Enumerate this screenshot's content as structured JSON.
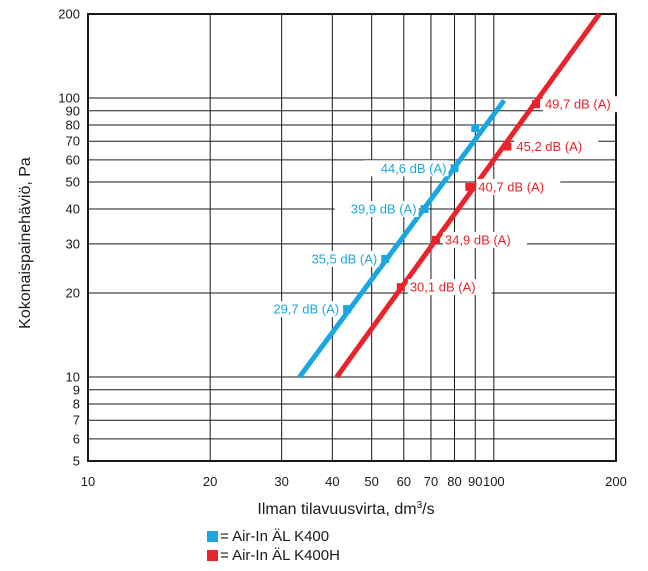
{
  "chart_data": {
    "type": "line",
    "xlabel": "Ilman tilavuusvirta, dm",
    "xlabel_sup": "3",
    "xlabel_tail": "/s",
    "ylabel": "Kokonaispainehäviö, Pa",
    "x_scale": "log",
    "y_scale": "log",
    "xlim": [
      10,
      200
    ],
    "ylim": [
      5,
      200
    ],
    "grid": true,
    "x_ticks": [
      10,
      20,
      30,
      40,
      50,
      60,
      70,
      80,
      90,
      100,
      200
    ],
    "x_tick_labels": [
      "10",
      "20",
      "30",
      "40",
      "50",
      "60",
      "70",
      "80",
      "90",
      "100",
      "200"
    ],
    "y_ticks": [
      5,
      6,
      7,
      8,
      9,
      10,
      20,
      30,
      40,
      50,
      60,
      70,
      80,
      90,
      100,
      200
    ],
    "y_tick_labels": [
      "5",
      "6",
      "7",
      "8",
      "9",
      "10",
      "20",
      "30",
      "40",
      "50",
      "60",
      "70",
      "80",
      "90",
      "100",
      "200"
    ],
    "legend_position": "bottom",
    "series": [
      {
        "name": "= Air-In ÄL K400",
        "color": "#1aa7e0",
        "x": [
          33.2,
          106
        ],
        "y": [
          10,
          98
        ],
        "markers": [
          {
            "x": 43.5,
            "y": 17.5,
            "label": "29,7 dB (A)"
          },
          {
            "x": 54,
            "y": 26.5,
            "label": "35,5 dB (A)"
          },
          {
            "x": 67.5,
            "y": 40,
            "label": "39,9 dB (A)"
          },
          {
            "x": 80,
            "y": 56,
            "label": "44,6 dB (A)"
          },
          {
            "x": 90,
            "y": 78,
            "label": ""
          }
        ]
      },
      {
        "name": "= Air-In ÄL K400H",
        "color": "#e8232a",
        "x": [
          41,
          182
        ],
        "y": [
          10,
          200
        ],
        "markers": [
          {
            "x": 59,
            "y": 21,
            "label": "30,1 dB (A)"
          },
          {
            "x": 72,
            "y": 31,
            "label": "34,9 dB (A)"
          },
          {
            "x": 87,
            "y": 48,
            "label": "40,7 dB (A)"
          },
          {
            "x": 108,
            "y": 67,
            "label": "45,2 dB (A)"
          },
          {
            "x": 127,
            "y": 95,
            "label": "49,7 dB (A)"
          }
        ]
      }
    ]
  }
}
